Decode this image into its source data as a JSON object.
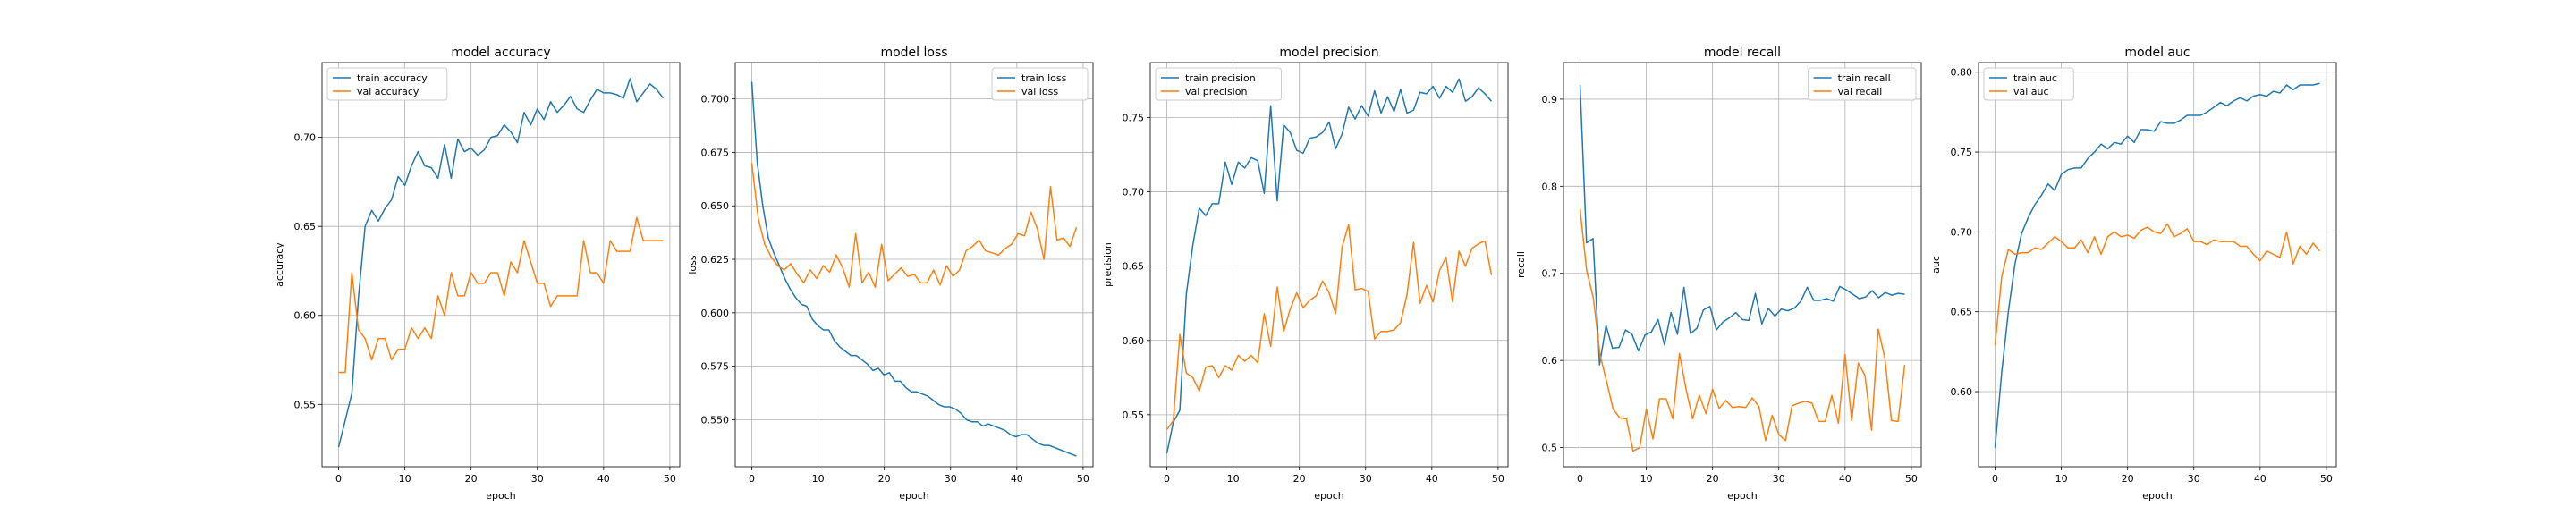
{
  "chart_data": [
    {
      "type": "line",
      "title": "model accuracy",
      "xlabel": "epoch",
      "ylabel": "accuracy",
      "xlim": [
        -2.5,
        51.5
      ],
      "ylim": [
        0.515,
        0.742
      ],
      "xticks": [
        0,
        10,
        20,
        30,
        40,
        50
      ],
      "yticks": [
        0.55,
        0.6,
        0.65,
        0.7
      ],
      "ytick_labels": [
        "0.55",
        "0.60",
        "0.65",
        "0.70"
      ],
      "grid": true,
      "legend_position": "upper-left",
      "series": [
        {
          "name": "train accuracy",
          "color": "#1f77b4",
          "values": [
            0.526,
            0.541,
            0.556,
            0.61,
            0.65,
            0.659,
            0.653,
            0.66,
            0.665,
            0.678,
            0.673,
            0.684,
            0.692,
            0.684,
            0.683,
            0.677,
            0.696,
            0.677,
            0.699,
            0.692,
            0.694,
            0.69,
            0.693,
            0.7,
            0.701,
            0.707,
            0.703,
            0.697,
            0.714,
            0.707,
            0.716,
            0.71,
            0.72,
            0.714,
            0.718,
            0.723,
            0.716,
            0.714,
            0.721,
            0.727,
            0.725,
            0.725,
            0.724,
            0.722,
            0.733,
            0.72,
            0.725,
            0.73,
            0.727,
            0.722
          ]
        },
        {
          "name": "val accuracy",
          "color": "#ff7f0e",
          "values": [
            0.568,
            0.568,
            0.624,
            0.592,
            0.587,
            0.575,
            0.587,
            0.587,
            0.575,
            0.581,
            0.581,
            0.593,
            0.587,
            0.593,
            0.587,
            0.611,
            0.6,
            0.624,
            0.611,
            0.611,
            0.624,
            0.618,
            0.618,
            0.624,
            0.624,
            0.611,
            0.63,
            0.624,
            0.642,
            0.63,
            0.618,
            0.618,
            0.605,
            0.611,
            0.611,
            0.611,
            0.611,
            0.642,
            0.624,
            0.624,
            0.618,
            0.642,
            0.636,
            0.636,
            0.636,
            0.655,
            0.642,
            0.642,
            0.642,
            0.642
          ]
        }
      ]
    },
    {
      "type": "line",
      "title": "model loss",
      "xlabel": "epoch",
      "ylabel": "loss",
      "xlim": [
        -2.5,
        51.5
      ],
      "ylim": [
        0.528,
        0.717
      ],
      "xticks": [
        0,
        10,
        20,
        30,
        40,
        50
      ],
      "yticks": [
        0.55,
        0.575,
        0.6,
        0.625,
        0.65,
        0.675,
        0.7
      ],
      "ytick_labels": [
        "0.550",
        "0.575",
        "0.600",
        "0.625",
        "0.650",
        "0.675",
        "0.700"
      ],
      "grid": true,
      "legend_position": "upper-right",
      "series": [
        {
          "name": "train loss",
          "color": "#1f77b4",
          "values": [
            0.708,
            0.67,
            0.65,
            0.635,
            0.628,
            0.622,
            0.616,
            0.611,
            0.607,
            0.604,
            0.603,
            0.597,
            0.594,
            0.592,
            0.592,
            0.587,
            0.584,
            0.582,
            0.58,
            0.58,
            0.578,
            0.576,
            0.573,
            0.574,
            0.571,
            0.572,
            0.568,
            0.568,
            0.565,
            0.563,
            0.563,
            0.562,
            0.561,
            0.559,
            0.557,
            0.556,
            0.556,
            0.555,
            0.553,
            0.55,
            0.549,
            0.549,
            0.547,
            0.548,
            0.547,
            0.546,
            0.545,
            0.543,
            0.542,
            0.543,
            0.543,
            0.541,
            0.539,
            0.538,
            0.538,
            0.537,
            0.536,
            0.535,
            0.534,
            0.533
          ]
        },
        {
          "name": "val loss",
          "color": "#ff7f0e",
          "values": [
            0.67,
            0.644,
            0.632,
            0.626,
            0.622,
            0.62,
            0.623,
            0.618,
            0.614,
            0.62,
            0.616,
            0.622,
            0.619,
            0.627,
            0.621,
            0.612,
            0.637,
            0.614,
            0.619,
            0.612,
            0.632,
            0.615,
            0.618,
            0.621,
            0.617,
            0.618,
            0.614,
            0.614,
            0.62,
            0.613,
            0.622,
            0.617,
            0.62,
            0.629,
            0.631,
            0.634,
            0.629,
            0.628,
            0.627,
            0.63,
            0.632,
            0.637,
            0.636,
            0.647,
            0.639,
            0.625,
            0.659,
            0.634,
            0.635,
            0.631,
            0.64
          ]
        }
      ]
    },
    {
      "type": "line",
      "title": "model precision",
      "xlabel": "epoch",
      "ylabel": "precision",
      "xlim": [
        -2.5,
        51.5
      ],
      "ylim": [
        0.515,
        0.787
      ],
      "xticks": [
        0,
        10,
        20,
        30,
        40,
        50
      ],
      "yticks": [
        0.55,
        0.6,
        0.65,
        0.7,
        0.75
      ],
      "ytick_labels": [
        "0.55",
        "0.60",
        "0.65",
        "0.70",
        "0.75"
      ],
      "grid": true,
      "legend_position": "upper-left",
      "series": [
        {
          "name": "train precision",
          "color": "#1f77b4",
          "values": [
            0.524,
            0.545,
            0.553,
            0.631,
            0.664,
            0.689,
            0.684,
            0.692,
            0.692,
            0.72,
            0.705,
            0.72,
            0.716,
            0.723,
            0.721,
            0.699,
            0.758,
            0.694,
            0.745,
            0.74,
            0.728,
            0.726,
            0.736,
            0.737,
            0.74,
            0.747,
            0.729,
            0.739,
            0.757,
            0.749,
            0.758,
            0.751,
            0.768,
            0.753,
            0.764,
            0.754,
            0.769,
            0.753,
            0.755,
            0.767,
            0.766,
            0.771,
            0.763,
            0.771,
            0.767,
            0.776,
            0.761,
            0.764,
            0.77,
            0.766,
            0.761
          ]
        },
        {
          "name": "val precision",
          "color": "#ff7f0e",
          "values": [
            0.54,
            0.546,
            0.604,
            0.578,
            0.575,
            0.566,
            0.582,
            0.583,
            0.575,
            0.583,
            0.58,
            0.59,
            0.586,
            0.59,
            0.585,
            0.618,
            0.596,
            0.636,
            0.606,
            0.621,
            0.632,
            0.622,
            0.627,
            0.63,
            0.64,
            0.632,
            0.618,
            0.663,
            0.678,
            0.634,
            0.635,
            0.633,
            0.601,
            0.606,
            0.606,
            0.607,
            0.612,
            0.631,
            0.666,
            0.625,
            0.637,
            0.626,
            0.647,
            0.656,
            0.626,
            0.66,
            0.65,
            0.662,
            0.665,
            0.667,
            0.644
          ]
        }
      ]
    },
    {
      "type": "line",
      "title": "model recall",
      "xlabel": "epoch",
      "ylabel": "recall",
      "xlim": [
        -2.5,
        51.5
      ],
      "ylim": [
        0.478,
        0.942
      ],
      "xticks": [
        0,
        10,
        20,
        30,
        40,
        50
      ],
      "yticks": [
        0.5,
        0.6,
        0.7,
        0.8,
        0.9
      ],
      "ytick_labels": [
        "0.5",
        "0.6",
        "0.7",
        "0.8",
        "0.9"
      ],
      "grid": true,
      "legend_position": "upper-right",
      "series": [
        {
          "name": "train recall",
          "color": "#1f77b4",
          "values": [
            0.916,
            0.735,
            0.74,
            0.595,
            0.64,
            0.614,
            0.615,
            0.635,
            0.63,
            0.611,
            0.629,
            0.633,
            0.647,
            0.618,
            0.655,
            0.63,
            0.684,
            0.631,
            0.637,
            0.658,
            0.662,
            0.635,
            0.644,
            0.649,
            0.655,
            0.647,
            0.646,
            0.677,
            0.642,
            0.66,
            0.651,
            0.659,
            0.657,
            0.66,
            0.668,
            0.684,
            0.669,
            0.669,
            0.671,
            0.668,
            0.685,
            0.681,
            0.676,
            0.671,
            0.673,
            0.68,
            0.672,
            0.678,
            0.675,
            0.677,
            0.676
          ]
        },
        {
          "name": "val recall",
          "color": "#ff7f0e",
          "values": [
            0.774,
            0.703,
            0.672,
            0.607,
            0.576,
            0.544,
            0.534,
            0.533,
            0.496,
            0.5,
            0.544,
            0.51,
            0.556,
            0.556,
            0.533,
            0.608,
            0.567,
            0.533,
            0.56,
            0.539,
            0.567,
            0.545,
            0.554,
            0.546,
            0.547,
            0.546,
            0.557,
            0.547,
            0.508,
            0.537,
            0.515,
            0.508,
            0.548,
            0.551,
            0.553,
            0.551,
            0.53,
            0.53,
            0.56,
            0.528,
            0.607,
            0.531,
            0.597,
            0.583,
            0.52,
            0.636,
            0.603,
            0.531,
            0.53,
            0.595
          ]
        }
      ]
    },
    {
      "type": "line",
      "title": "model auc",
      "xlabel": "epoch",
      "ylabel": "auc",
      "xlim": [
        -2.5,
        51.5
      ],
      "ylim": [
        0.553,
        0.806
      ],
      "xticks": [
        0,
        10,
        20,
        30,
        40,
        50
      ],
      "yticks": [
        0.6,
        0.65,
        0.7,
        0.75,
        0.8
      ],
      "ytick_labels": [
        "0.60",
        "0.65",
        "0.70",
        "0.75",
        "0.80"
      ],
      "grid": true,
      "legend_position": "upper-left",
      "series": [
        {
          "name": "train auc",
          "color": "#1f77b4",
          "values": [
            0.565,
            0.612,
            0.65,
            0.68,
            0.699,
            0.709,
            0.717,
            0.723,
            0.73,
            0.726,
            0.736,
            0.739,
            0.74,
            0.74,
            0.746,
            0.75,
            0.755,
            0.752,
            0.756,
            0.755,
            0.76,
            0.756,
            0.764,
            0.764,
            0.763,
            0.769,
            0.768,
            0.768,
            0.77,
            0.773,
            0.773,
            0.773,
            0.775,
            0.778,
            0.781,
            0.779,
            0.782,
            0.784,
            0.782,
            0.785,
            0.786,
            0.785,
            0.788,
            0.787,
            0.792,
            0.789,
            0.792,
            0.792,
            0.792,
            0.793
          ]
        },
        {
          "name": "val auc",
          "color": "#ff7f0e",
          "values": [
            0.629,
            0.672,
            0.689,
            0.686,
            0.687,
            0.687,
            0.69,
            0.689,
            0.693,
            0.697,
            0.694,
            0.69,
            0.69,
            0.695,
            0.687,
            0.697,
            0.686,
            0.697,
            0.7,
            0.697,
            0.698,
            0.696,
            0.701,
            0.703,
            0.7,
            0.699,
            0.705,
            0.697,
            0.699,
            0.702,
            0.694,
            0.694,
            0.692,
            0.695,
            0.694,
            0.694,
            0.694,
            0.691,
            0.691,
            0.686,
            0.682,
            0.688,
            0.686,
            0.684,
            0.7,
            0.68,
            0.691,
            0.686,
            0.693,
            0.688
          ]
        }
      ]
    }
  ]
}
